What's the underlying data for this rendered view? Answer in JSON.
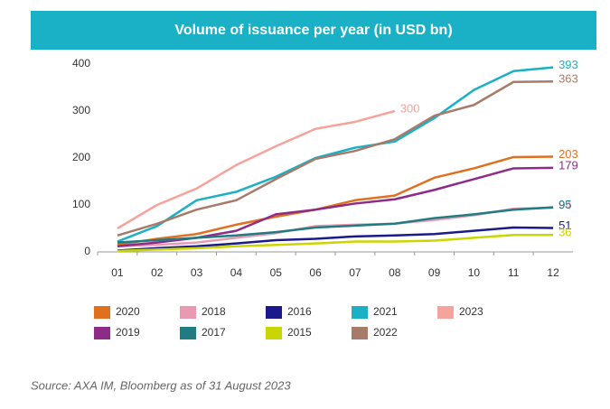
{
  "chart_data": {
    "type": "line",
    "title": "Volume of issuance per year (in USD bn)",
    "categories": [
      "01",
      "02",
      "03",
      "04",
      "05",
      "06",
      "07",
      "08",
      "09",
      "10",
      "11",
      "12"
    ],
    "series": [
      {
        "name": "2020",
        "color": "#e0701f",
        "values": [
          15,
          28,
          38,
          58,
          75,
          90,
          110,
          120,
          158,
          178,
          202,
          203
        ]
      },
      {
        "name": "2018",
        "color": "#e99ab2",
        "values": [
          12,
          15,
          20,
          30,
          40,
          55,
          58,
          60,
          68,
          78,
          92,
          94
        ]
      },
      {
        "name": "2016",
        "color": "#1b1a8c",
        "values": [
          3,
          8,
          12,
          18,
          25,
          28,
          33,
          35,
          38,
          45,
          52,
          51
        ]
      },
      {
        "name": "2021",
        "color": "#1ab0c6",
        "values": [
          22,
          55,
          110,
          128,
          160,
          200,
          222,
          235,
          285,
          345,
          385,
          393
        ]
      },
      {
        "name": "2023",
        "color": "#f6a39c",
        "values": [
          50,
          100,
          135,
          185,
          225,
          262,
          277,
          300,
          null,
          null,
          null,
          null
        ]
      },
      {
        "name": "2019",
        "color": "#8c2c87",
        "values": [
          12,
          20,
          30,
          45,
          80,
          90,
          103,
          112,
          132,
          155,
          178,
          179
        ]
      },
      {
        "name": "2017",
        "color": "#217b82",
        "values": [
          20,
          25,
          30,
          35,
          42,
          52,
          56,
          60,
          72,
          80,
          90,
          95
        ]
      },
      {
        "name": "2015",
        "color": "#c9d600",
        "values": [
          2,
          5,
          8,
          12,
          15,
          18,
          22,
          22,
          24,
          30,
          36,
          36
        ]
      },
      {
        "name": "2022",
        "color": "#a67b6a",
        "values": [
          35,
          60,
          90,
          110,
          155,
          198,
          215,
          240,
          290,
          313,
          362,
          363
        ]
      }
    ],
    "ylim": [
      0,
      400
    ],
    "yticks": [
      0,
      100,
      200,
      300,
      400
    ],
    "grid": false,
    "source": "Source: AXA IM, Bloomberg as of 31 August 2023"
  }
}
